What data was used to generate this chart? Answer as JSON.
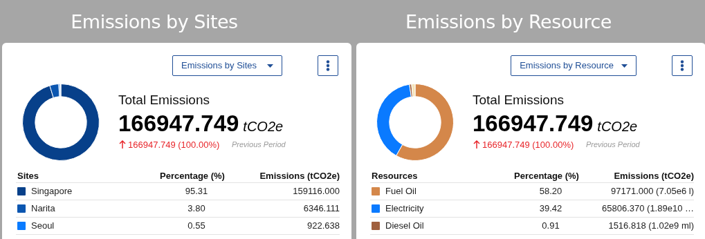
{
  "chart_data": [
    {
      "type": "donut",
      "title": "Emissions by Sites",
      "legend": "bottom",
      "categories": [
        "Singapore",
        "Narita",
        "Seoul",
        null
      ],
      "values": [
        159116.0,
        6346.111,
        922.638,
        563
      ],
      "colors": [
        "#07408a",
        "#0b56b0",
        "#0a7bff",
        "#dbe8f8"
      ],
      "value_labels": [
        "159116.000",
        "6346.111",
        "922.638",
        null
      ],
      "annotations": [
        "Emissions by Sites",
        "Total Emissions",
        "166947.749",
        "tCO2e",
        "166947.749 (100.00%)",
        "Previous Period",
        "Sites",
        "Percentage (%)",
        "Emissions (tCO2e)",
        "95.31",
        "3.80",
        "0.55"
      ]
    },
    {
      "type": "donut",
      "title": "Emissions by Resource",
      "legend": "bottom",
      "categories": [
        "Fuel Oil",
        "Electricity",
        "Diesel Oil",
        null
      ],
      "values": [
        97171.0,
        65806.37,
        1516.818,
        2454
      ],
      "colors": [
        "#d4874a",
        "#0a7aff",
        "#a0603e",
        "#f5e3b8"
      ],
      "value_labels": [
        "97171.000 (7.05e6 l)",
        "65806.370 (1.89e10 …",
        "1516.818 (1.02e9 ml)",
        null
      ],
      "annotations": [
        "Emissions by Resource",
        "Total Emissions",
        "166947.749",
        "tCO2e",
        "166947.749 (100.00%)",
        "Previous Period",
        "Resources",
        "Percentage (%)",
        "Emissions (tCO2e)",
        "58.20",
        "39.42",
        "0.91"
      ]
    }
  ]
}
